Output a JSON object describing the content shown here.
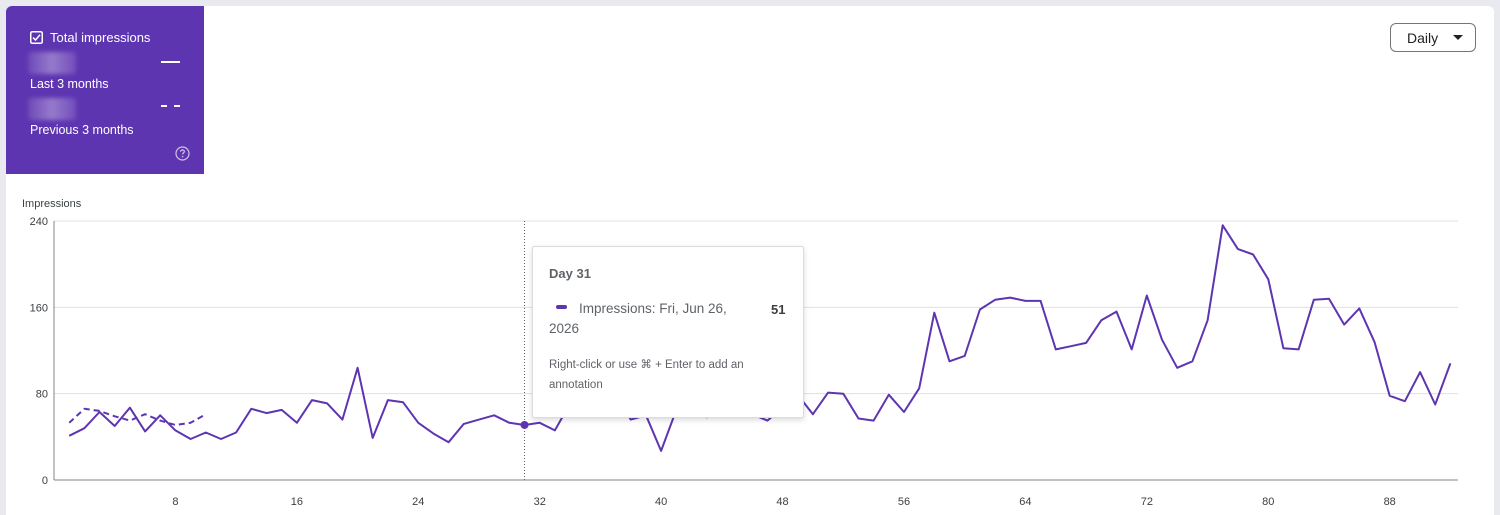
{
  "metric_card": {
    "label": "Total impressions",
    "current_period": "Last 3 months",
    "previous_period": "Previous 3 months",
    "bg_color": "#5e35b1",
    "checkbox_icon": "checkbox-checked-icon",
    "help_icon": "help-circle-icon"
  },
  "range_select": {
    "value": "Daily",
    "icon": "caret-down-icon"
  },
  "tooltip": {
    "title": "Day 31",
    "series_text": "Impressions: Fri, Jun 26, 2026",
    "value": "51",
    "hint": "Right-click or use ⌘ + Enter to add an annotation"
  },
  "chart_data": {
    "type": "line",
    "ylabel": "Impressions",
    "ylim": [
      0,
      240
    ],
    "yticks": [
      0,
      80,
      160,
      240
    ],
    "xlim": [
      0,
      92.5
    ],
    "xticks": [
      8,
      16,
      24,
      32,
      40,
      48,
      56,
      64,
      72,
      80,
      88
    ],
    "grid": true,
    "highlight_x": 31,
    "series": [
      {
        "name": "Last 3 months",
        "style": "solid",
        "color": "#5e35b1",
        "x": [
          1,
          2,
          3,
          4,
          5,
          6,
          7,
          8,
          9,
          10,
          11,
          12,
          13,
          14,
          15,
          16,
          17,
          18,
          19,
          20,
          21,
          22,
          23,
          24,
          25,
          26,
          27,
          28,
          29,
          30,
          31,
          32,
          33,
          34,
          35,
          36,
          37,
          38,
          39,
          40,
          41,
          42,
          43,
          44,
          45,
          46,
          47,
          48,
          49,
          50,
          51,
          52,
          53,
          54,
          55,
          56,
          57,
          58,
          59,
          60,
          61,
          62,
          63,
          64,
          65,
          66,
          67,
          68,
          69,
          70,
          71,
          72,
          73,
          74,
          75,
          76,
          77,
          78,
          79,
          80,
          81,
          82,
          83,
          84,
          85,
          86,
          87,
          88,
          89,
          90,
          91,
          92
        ],
        "values": [
          41,
          48,
          63,
          50,
          67,
          45,
          60,
          46,
          38,
          44,
          38,
          44,
          66,
          62,
          65,
          53,
          74,
          71,
          56,
          104,
          39,
          74,
          72,
          53,
          43,
          35,
          52,
          56,
          60,
          53,
          51,
          53,
          46,
          71,
          69,
          87,
          78,
          56,
          60,
          27,
          65,
          66,
          58,
          70,
          61,
          61,
          55,
          67,
          79,
          61,
          81,
          80,
          57,
          55,
          79,
          63,
          85,
          155,
          110,
          115,
          158,
          167,
          169,
          166,
          166,
          121,
          124,
          127,
          148,
          156,
          121,
          171,
          130,
          104,
          110,
          148,
          236,
          214,
          209,
          186,
          122,
          121,
          167,
          168,
          144,
          159,
          128,
          78,
          73,
          100,
          70,
          108
        ]
      },
      {
        "name": "Previous 3 months",
        "style": "dashed",
        "color": "#5e35b1",
        "x": [
          1,
          2,
          3,
          4,
          5,
          6,
          7,
          8,
          9,
          10
        ],
        "values": [
          53,
          66,
          64,
          59,
          55,
          61,
          55,
          51,
          53,
          61
        ]
      }
    ]
  }
}
